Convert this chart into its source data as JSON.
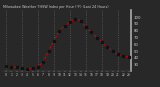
{
  "title": "Milwaukee Weather THSW Index per Hour (°F) (Last 24 Hours)",
  "hours": [
    0,
    1,
    2,
    3,
    4,
    5,
    6,
    7,
    8,
    9,
    10,
    11,
    12,
    13,
    14,
    15,
    16,
    17,
    18,
    19,
    20,
    21,
    22,
    23
  ],
  "values": [
    28,
    27,
    26,
    25,
    24,
    25,
    27,
    34,
    50,
    65,
    80,
    87,
    93,
    98,
    95,
    85,
    78,
    70,
    63,
    56,
    50,
    45,
    43,
    41
  ],
  "line_color": "#dd0000",
  "marker_color": "#111111",
  "bg_color": "#282828",
  "plot_bg": "#282828",
  "grid_color": "#666666",
  "text_color": "#cccccc",
  "ylim": [
    20,
    110
  ],
  "ytick_values": [
    30,
    40,
    50,
    60,
    70,
    80,
    90,
    100
  ],
  "vline_hours": [
    0,
    3,
    6,
    9,
    12,
    15,
    18,
    21
  ]
}
